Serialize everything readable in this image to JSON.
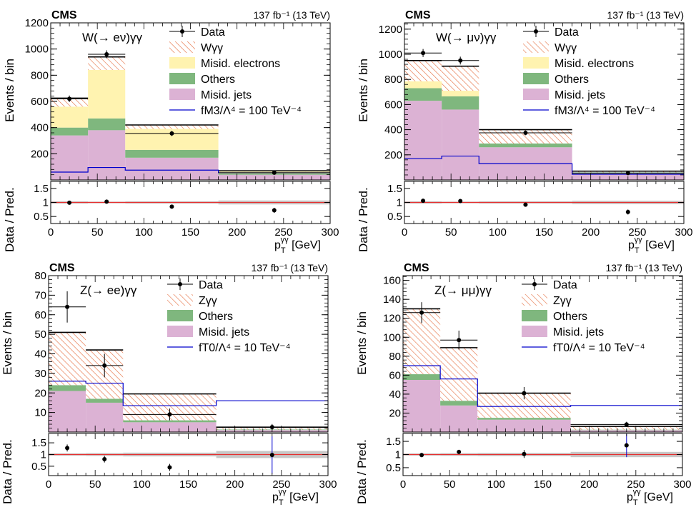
{
  "figure": {
    "x_label_main": "p",
    "x_label_sub": "T",
    "x_label_sup": "γγ",
    "x_label_unit": " [GeV]",
    "y_label_upper": "Events / bin",
    "y_label_lower": "Data / Pred.",
    "x_ticks": [
      "0",
      "50",
      "100",
      "150",
      "200",
      "250",
      "300"
    ]
  },
  "colors": {
    "signal_hatch": "#e7764a",
    "signal_fill": "#ffffff",
    "misid_electrons": "#fff3b0",
    "others": "#7fb77e",
    "misid_jets": "#dcb2d4",
    "aqgc_line": "#0000cc",
    "ratio_line": "#e53030",
    "uncertainty_band": "#c8c8c8"
  },
  "chart_data": [
    {
      "type": "bar",
      "cms": "CMS",
      "lumi": "137 fb⁻¹ (13 TeV)",
      "channel": "W(→ eν)γγ",
      "bins": [
        0,
        40,
        80,
        180,
        300
      ],
      "ylim": [
        0,
        1200
      ],
      "y_ticks": [
        200,
        400,
        600,
        800,
        1000,
        1200
      ],
      "legend": [
        "Data",
        "Wγγ",
        "Misid. electrons",
        "Others",
        "Misid. jets",
        "fM3/Λ⁴ = 100 TeV⁻⁴"
      ],
      "stack": {
        "misid_jets": [
          340,
          380,
          170,
          40
        ],
        "others": [
          60,
          90,
          60,
          10
        ],
        "misid_electrons": [
          160,
          370,
          160,
          15
        ],
        "signal": [
          65,
          100,
          30,
          5
        ]
      },
      "aqgc": [
        60,
        95,
        75,
        55
      ],
      "data": {
        "x": [
          20,
          60,
          130,
          240
        ],
        "y": [
          620,
          960,
          355,
          55
        ],
        "yerr": [
          25,
          30,
          19,
          7
        ]
      },
      "ratio": {
        "ylim": [
          0.25,
          1.75
        ],
        "y_ticks": [
          "0.5",
          "1",
          "1.5"
        ],
        "x": [
          20,
          60,
          130,
          240
        ],
        "y": [
          0.99,
          1.03,
          0.85,
          0.72
        ],
        "yerr": [
          0.04,
          0.03,
          0.05,
          0.09
        ],
        "band": [
          0.04,
          0.03,
          0.04,
          0.07
        ]
      }
    },
    {
      "type": "bar",
      "cms": "CMS",
      "lumi": "137 fb⁻¹ (13 TeV)",
      "channel": "W(→ μν)γγ",
      "bins": [
        0,
        40,
        80,
        180,
        300
      ],
      "ylim": [
        0,
        1250
      ],
      "y_ticks": [
        200,
        400,
        600,
        800,
        1000,
        1200
      ],
      "legend": [
        "Data",
        "Wγγ",
        "Misid. electrons",
        "Others",
        "Misid. jets",
        "fM3/Λ⁴ = 100 TeV⁻⁴"
      ],
      "stack": {
        "misid_jets": [
          630,
          560,
          260,
          50
        ],
        "others": [
          100,
          105,
          30,
          10
        ],
        "misid_electrons": [
          55,
          45,
          0,
          0
        ],
        "signal": [
          165,
          195,
          110,
          10
        ]
      },
      "aqgc": [
        170,
        190,
        130,
        45
      ],
      "data": {
        "x": [
          20,
          60,
          130,
          240
        ],
        "y": [
          1010,
          950,
          375,
          55
        ],
        "yerr": [
          32,
          31,
          19,
          7
        ]
      },
      "ratio": {
        "ylim": [
          0.25,
          1.75
        ],
        "y_ticks": [
          "0.5",
          "1",
          "1.5"
        ],
        "x": [
          20,
          60,
          130,
          240
        ],
        "y": [
          1.06,
          1.05,
          0.92,
          0.66
        ],
        "yerr": [
          0.04,
          0.04,
          0.05,
          0.09
        ],
        "band": [
          0.04,
          0.03,
          0.04,
          0.06
        ]
      }
    },
    {
      "type": "bar",
      "cms": "CMS",
      "lumi": "137 fb⁻¹ (13 TeV)",
      "channel": "Z(→ ee)γγ",
      "bins": [
        0,
        40,
        80,
        180,
        300
      ],
      "ylim": [
        0,
        80
      ],
      "y_ticks": [
        10,
        20,
        30,
        40,
        50,
        60,
        70,
        80
      ],
      "legend": [
        "Data",
        "Zγγ",
        "Others",
        "Misid. jets",
        "fT0/Λ⁴ = 10 TeV⁻⁴"
      ],
      "stack": {
        "misid_jets": [
          21,
          15,
          5,
          1
        ],
        "others": [
          3,
          2,
          1,
          0.3
        ],
        "signal": [
          27,
          25,
          13.5,
          1.2
        ]
      },
      "aqgc": [
        26,
        25,
        13.5,
        16
      ],
      "data": {
        "x": [
          20,
          60,
          130,
          240
        ],
        "y": [
          64,
          34,
          9,
          2.5
        ],
        "yerr": [
          8,
          6,
          3,
          1.6
        ]
      },
      "ratio": {
        "ylim": [
          0.1,
          1.9
        ],
        "y_ticks": [
          "0.5",
          "1",
          "1.5"
        ],
        "x": [
          20,
          60,
          130,
          240
        ],
        "y": [
          1.28,
          0.8,
          0.45,
          0.98
        ],
        "yerr": [
          0.15,
          0.14,
          0.15,
          0.8
        ],
        "band": [
          0.05,
          0.06,
          0.08,
          0.15
        ]
      }
    },
    {
      "type": "bar",
      "cms": "CMS",
      "lumi": "137 fb⁻¹ (13 TeV)",
      "channel": "Z(→ μμ)γγ",
      "bins": [
        0,
        40,
        80,
        180,
        300
      ],
      "ylim": [
        0,
        165
      ],
      "y_ticks": [
        20,
        40,
        60,
        80,
        100,
        120,
        140,
        160
      ],
      "legend": [
        "Data",
        "Zγγ",
        "Others",
        "Misid. jets",
        "fT0/Λ⁴ = 10 TeV⁻⁴"
      ],
      "stack": {
        "misid_jets": [
          55,
          28,
          13,
          2
        ],
        "others": [
          6,
          5,
          2,
          0.5
        ],
        "signal": [
          69,
          56,
          26,
          3.5
        ]
      },
      "aqgc": [
        70,
        56,
        27,
        28
      ],
      "data": {
        "x": [
          20,
          60,
          130,
          240
        ],
        "y": [
          126,
          97,
          41,
          8
        ],
        "yerr": [
          11,
          10,
          6.5,
          2.8
        ]
      },
      "ratio": {
        "ylim": [
          0.2,
          1.8
        ],
        "y_ticks": [
          "0.5",
          "1",
          "1.5"
        ],
        "x": [
          20,
          60,
          130,
          240
        ],
        "y": [
          0.98,
          1.1,
          1.02,
          1.35
        ],
        "yerr": [
          0.08,
          0.08,
          0.15,
          0.45
        ],
        "band": [
          0.04,
          0.05,
          0.06,
          0.1
        ]
      }
    }
  ]
}
